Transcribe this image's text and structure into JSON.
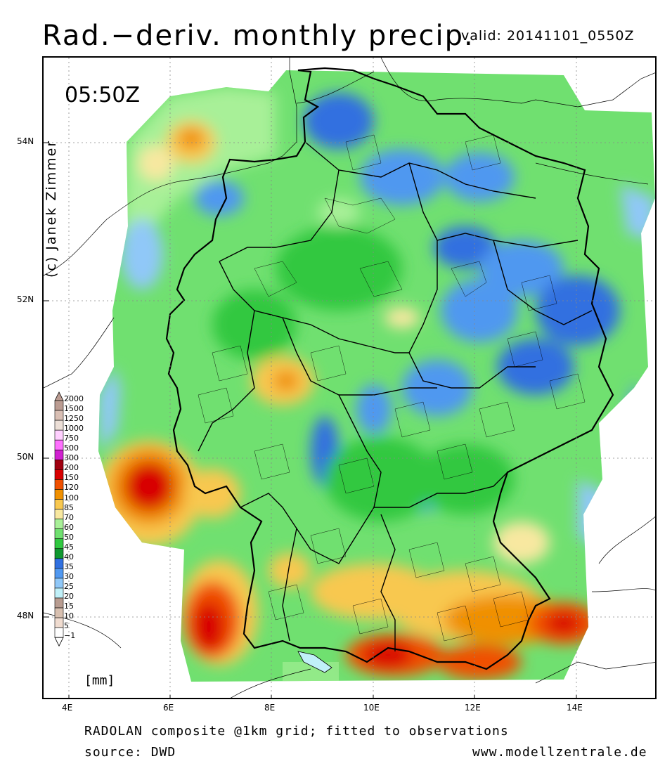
{
  "title": "Rad.−deriv. monthly precip.",
  "valid": "valid: 20141101_0550Z",
  "time_label": "05:50Z",
  "copyright": "(c) Janek Zimmer",
  "lat_labels": [
    "54N",
    "52N",
    "50N",
    "48N"
  ],
  "lon_labels": [
    "4E",
    "6E",
    "8E",
    "10E",
    "12E",
    "14E"
  ],
  "legend": {
    "values": [
      "2000",
      "1500",
      "1250",
      "1000",
      "750",
      "500",
      "300",
      "200",
      "150",
      "120",
      "100",
      "85",
      "70",
      "60",
      "50",
      "45",
      "40",
      "35",
      "30",
      "25",
      "20",
      "15",
      "10",
      "5",
      "−1"
    ],
    "colors": [
      "#bb9c92",
      "#d9bfb4",
      "#ecdfd7",
      "#ffd0ff",
      "#ff70ff",
      "#d020d0",
      "#a00010",
      "#d80000",
      "#f05000",
      "#f09000",
      "#f8c850",
      "#f8e8a0",
      "#a8f098",
      "#70e070",
      "#30c840",
      "#109830",
      "#3070e0",
      "#5098f0",
      "#90c8f8",
      "#c0f0f8",
      "#b89c90",
      "#d8c0b0",
      "#f0dcd0",
      "#ffffff"
    ],
    "unit": "[mm]"
  },
  "footer": {
    "line1": "RADOLAN composite @1km grid; fitted to observations",
    "line2": "source: DWD",
    "url": "www.modellzentrale.de"
  }
}
